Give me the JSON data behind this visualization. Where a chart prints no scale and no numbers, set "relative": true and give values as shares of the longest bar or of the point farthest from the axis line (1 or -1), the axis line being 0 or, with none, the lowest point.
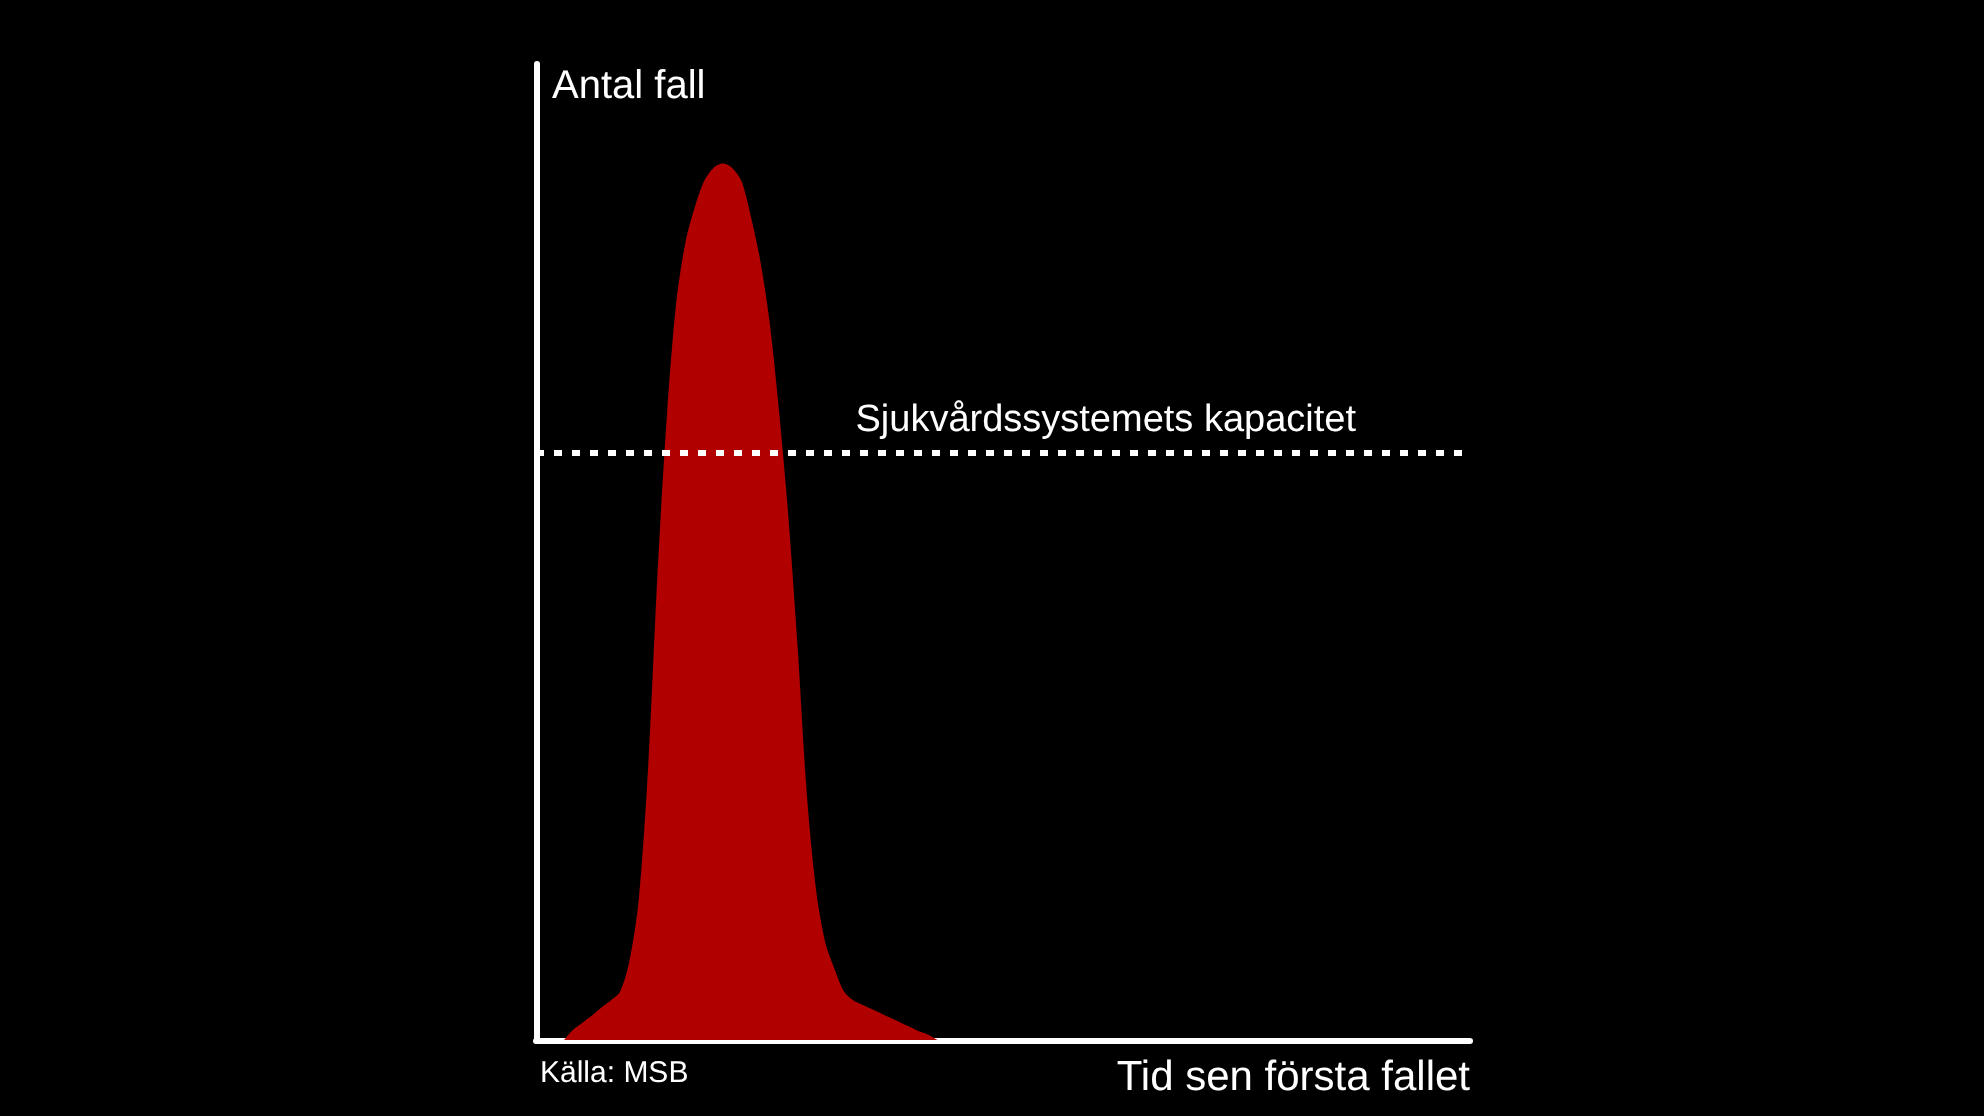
{
  "chart_data": {
    "type": "area",
    "ylabel": "Antal fall",
    "xlabel": "Tid sen första fallet",
    "annotations": [
      "Källa: MSB"
    ],
    "relative": true,
    "color": "#b00000",
    "categories": [
      null,
      null,
      null,
      null,
      null,
      null,
      null,
      null,
      null,
      null,
      null,
      null,
      null,
      null,
      null,
      null,
      null,
      null,
      null,
      null,
      null,
      null,
      null,
      null,
      null,
      null,
      null,
      null,
      null,
      null,
      null,
      null,
      null,
      null,
      null,
      null,
      null,
      null,
      null,
      null,
      null,
      null,
      null,
      null,
      null,
      null,
      null,
      null,
      null,
      null,
      null,
      null,
      null,
      null,
      null,
      null,
      null,
      null,
      null,
      null,
      null,
      null,
      null,
      null,
      null,
      null,
      null,
      null,
      null,
      null,
      null,
      null,
      null,
      null,
      null,
      null,
      null,
      null,
      null,
      null,
      null,
      null,
      null,
      null,
      null,
      null,
      null,
      null,
      null,
      null,
      null,
      null,
      null,
      null,
      null,
      null,
      null,
      null,
      null,
      null,
      null
    ],
    "values": [
      null,
      null,
      null,
      0,
      0.012,
      0.02,
      0.028,
      0.037,
      0.045,
      0.055,
      0.09,
      0.16,
      0.31,
      0.53,
      0.71,
      0.84,
      0.91,
      0.95,
      0.98,
      0.995,
      1,
      0.995,
      0.98,
      0.94,
      0.89,
      0.82,
      0.72,
      0.6,
      0.45,
      0.28,
      0.17,
      0.11,
      0.08,
      0.055,
      0.045,
      0.04,
      0.035,
      0.03,
      0.025,
      0.02,
      0.015,
      0.01,
      0.006,
      0,
      null,
      null,
      null,
      null,
      null,
      null,
      null,
      null,
      null,
      null,
      null,
      null,
      null,
      null,
      null,
      null,
      null,
      null,
      null,
      null,
      null,
      null,
      null,
      null,
      null,
      null,
      null,
      null,
      null,
      null,
      null,
      null,
      null,
      null,
      null,
      null,
      null,
      null,
      null,
      null,
      null,
      null,
      null,
      null,
      null,
      null,
      null,
      null,
      null,
      null,
      null,
      null,
      null,
      null,
      null,
      null,
      null
    ],
    "ref_lines": [
      {
        "axis": "y",
        "value": 0.67,
        "label": "Sjukvårdssystemets kapacitet",
        "color": "#ffffff",
        "line_style": "dotted"
      }
    ]
  }
}
